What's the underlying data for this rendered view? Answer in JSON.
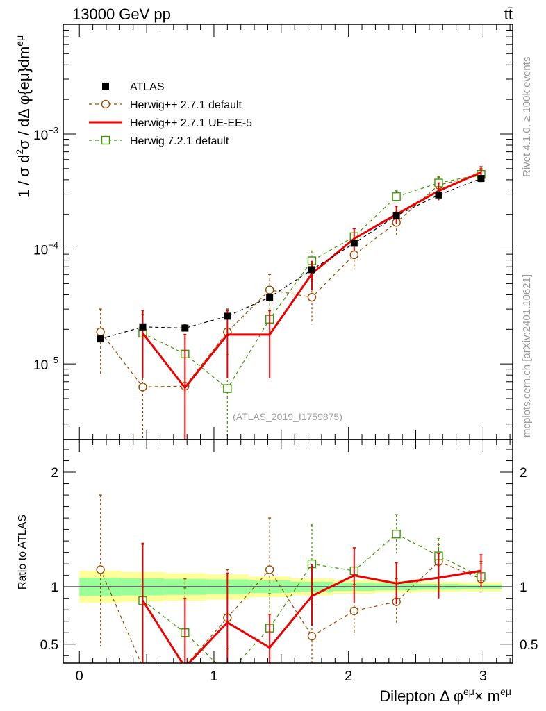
{
  "header": {
    "energy": "13000 GeV pp",
    "process": "tt̄"
  },
  "side_labels": {
    "rivet": "Rivet 4.1.0, ≥ 100k events",
    "mcplots": "mcplots.cern.ch [arXiv:2401.10621]"
  },
  "watermark": "(ATLAS_2019_I1759875)",
  "colors": {
    "atlas": "#000000",
    "herwig271_default": "#994c00",
    "herwig271_ueee5": "#ee0000",
    "herwig721_default": "#3f9900",
    "band_inner": "#99ff99",
    "band_outer": "#ffff99"
  },
  "legend": [
    {
      "key": "atlas",
      "label": "ATLAS",
      "marker": "square-filled"
    },
    {
      "key": "h271def",
      "label": "Herwig++ 2.7.1 default",
      "marker": "circle-open"
    },
    {
      "key": "h271ue",
      "label": "Herwig++ 2.7.1 UE-EE-5",
      "marker": "line"
    },
    {
      "key": "h721def",
      "label": "Herwig 7.2.1 default",
      "marker": "square-open"
    }
  ],
  "chart_data": [
    {
      "type": "scatter",
      "panel": "main",
      "yscale": "log",
      "ylabel": "1 / σ  d²σ / dΔ φ{eμ}dm^eμ",
      "ylim": [
        2.2e-06,
        0.009
      ],
      "xlim": [
        -0.12,
        3.22
      ],
      "y_tick_labels": [
        "10^-5",
        "10^-4",
        "10^-3"
      ],
      "x": [
        0.157,
        0.471,
        0.785,
        1.1,
        1.414,
        1.728,
        2.042,
        2.356,
        2.67,
        2.985
      ],
      "series": [
        {
          "name": "ATLAS",
          "key": "atlas",
          "values": [
            1.65e-05,
            2.1e-05,
            2.05e-05,
            2.6e-05,
            3.8e-05,
            6.6e-05,
            0.000112,
            0.000195,
            0.000295,
            0.00041
          ]
        },
        {
          "name": "Herwig++ 2.7.1 default",
          "key": "h271def",
          "values": [
            1.9e-05,
            6.3e-06,
            6.4e-06,
            1.9e-05,
            4.4e-05,
            3.8e-05,
            8.9e-05,
            0.00017,
            0.00036,
            0.00044
          ],
          "err_up": [
            3e-05,
            1.9e-05,
            2.2e-05,
            3e-05,
            6e-05,
            5.6e-05,
            0.000112,
            0.00021,
            0.00043,
            0.0005
          ],
          "err_down": [
            8e-06,
            1e-06,
            2e-06,
            8e-06,
            2.6e-05,
            2.2e-05,
            6.6e-05,
            0.00013,
            0.00029,
            0.00038
          ]
        },
        {
          "name": "Herwig++ 2.7.1 UE-EE-5",
          "key": "h271ue",
          "values": [
            null,
            1.85e-05,
            6.2e-06,
            1.8e-05,
            1.8e-05,
            6.1e-05,
            0.000123,
            0.0002,
            0.00032,
            0.000465
          ],
          "err_up": [
            null,
            2.9e-05,
            1.8e-05,
            2.9e-05,
            2.9e-05,
            7.8e-05,
            0.00015,
            0.000235,
            0.000375,
            0.00052
          ],
          "err_down": [
            null,
            7.5e-06,
            1e-06,
            7.5e-06,
            7.5e-06,
            4.4e-05,
            9.6e-05,
            0.000165,
            0.000265,
            0.00041
          ]
        },
        {
          "name": "Herwig 7.2.1 default",
          "key": "h721def",
          "values": [
            null,
            1.85e-05,
            1.22e-05,
            6.1e-06,
            2.45e-05,
            7.9e-05,
            0.000128,
            0.000285,
            0.000375,
            0.000445
          ],
          "err_up": [
            null,
            2.7e-05,
            1.8e-05,
            1.2e-05,
            3.6e-05,
            9.6e-05,
            0.00015,
            0.00032,
            0.00042,
            0.00049
          ],
          "err_down": [
            null,
            1e-05,
            6e-06,
            1e-06,
            1.5e-05,
            6.3e-05,
            0.000105,
            0.00025,
            0.00033,
            0.0004
          ]
        }
      ]
    },
    {
      "type": "scatter",
      "panel": "ratio",
      "ylabel": "Ratio to ATLAS",
      "xlabel": "Dilepton Δ φ^eμ × m^eμ",
      "ylim": [
        0.335,
        2.285
      ],
      "xlim": [
        -0.12,
        3.22
      ],
      "y_tick_labels": [
        "0.5",
        "1",
        "2"
      ],
      "x_tick_labels": [
        "0",
        "1",
        "2",
        "3"
      ],
      "band_edges": [
        0,
        0.314,
        0.628,
        0.942,
        1.257,
        1.571,
        1.885,
        2.199,
        2.513,
        2.827,
        3.142
      ],
      "band_inner_half": [
        0.08,
        0.075,
        0.07,
        0.065,
        0.055,
        0.045,
        0.035,
        0.03,
        0.025,
        0.02
      ],
      "band_outer_half": [
        0.14,
        0.13,
        0.12,
        0.11,
        0.09,
        0.075,
        0.06,
        0.05,
        0.045,
        0.04
      ],
      "x": [
        0.157,
        0.471,
        0.785,
        1.1,
        1.414,
        1.728,
        2.042,
        2.356,
        2.67,
        2.985
      ],
      "series": [
        {
          "name": "Herwig++ 2.7.1 default",
          "key": "h271def",
          "values": [
            1.15,
            0.3,
            0.31,
            0.73,
            1.15,
            0.57,
            0.79,
            0.87,
            1.22,
            1.07
          ],
          "err_up": [
            1.8,
            0.91,
            1.07,
            1.15,
            1.6,
            0.86,
            1.02,
            1.07,
            1.37,
            1.22
          ],
          "err_down": [
            0.48,
            0.05,
            0.05,
            0.31,
            0.68,
            0.3,
            0.58,
            0.67,
            1.05,
            0.93
          ]
        },
        {
          "name": "Herwig++ 2.7.1 UE-EE-5",
          "key": "h271ue",
          "values": [
            null,
            0.88,
            0.3,
            0.69,
            0.47,
            0.92,
            1.1,
            1.03,
            1.08,
            1.14
          ],
          "err_up": [
            null,
            1.38,
            0.9,
            1.12,
            0.76,
            1.19,
            1.34,
            1.21,
            1.29,
            1.28
          ],
          "err_down": [
            null,
            0.15,
            0.05,
            0.15,
            0.2,
            0.66,
            0.86,
            0.85,
            0.9,
            1.0
          ]
        },
        {
          "name": "Herwig 7.2.1 default",
          "key": "h721def",
          "values": [
            null,
            0.88,
            0.6,
            0.24,
            0.64,
            1.2,
            1.14,
            1.46,
            1.27,
            1.09
          ],
          "err_up": [
            null,
            1.37,
            0.99,
            0.46,
            0.94,
            1.54,
            1.34,
            1.63,
            1.42,
            1.2
          ],
          "err_down": [
            null,
            0.45,
            0.3,
            0.05,
            0.4,
            0.93,
            0.94,
            1.29,
            1.12,
            0.98
          ]
        }
      ]
    }
  ]
}
